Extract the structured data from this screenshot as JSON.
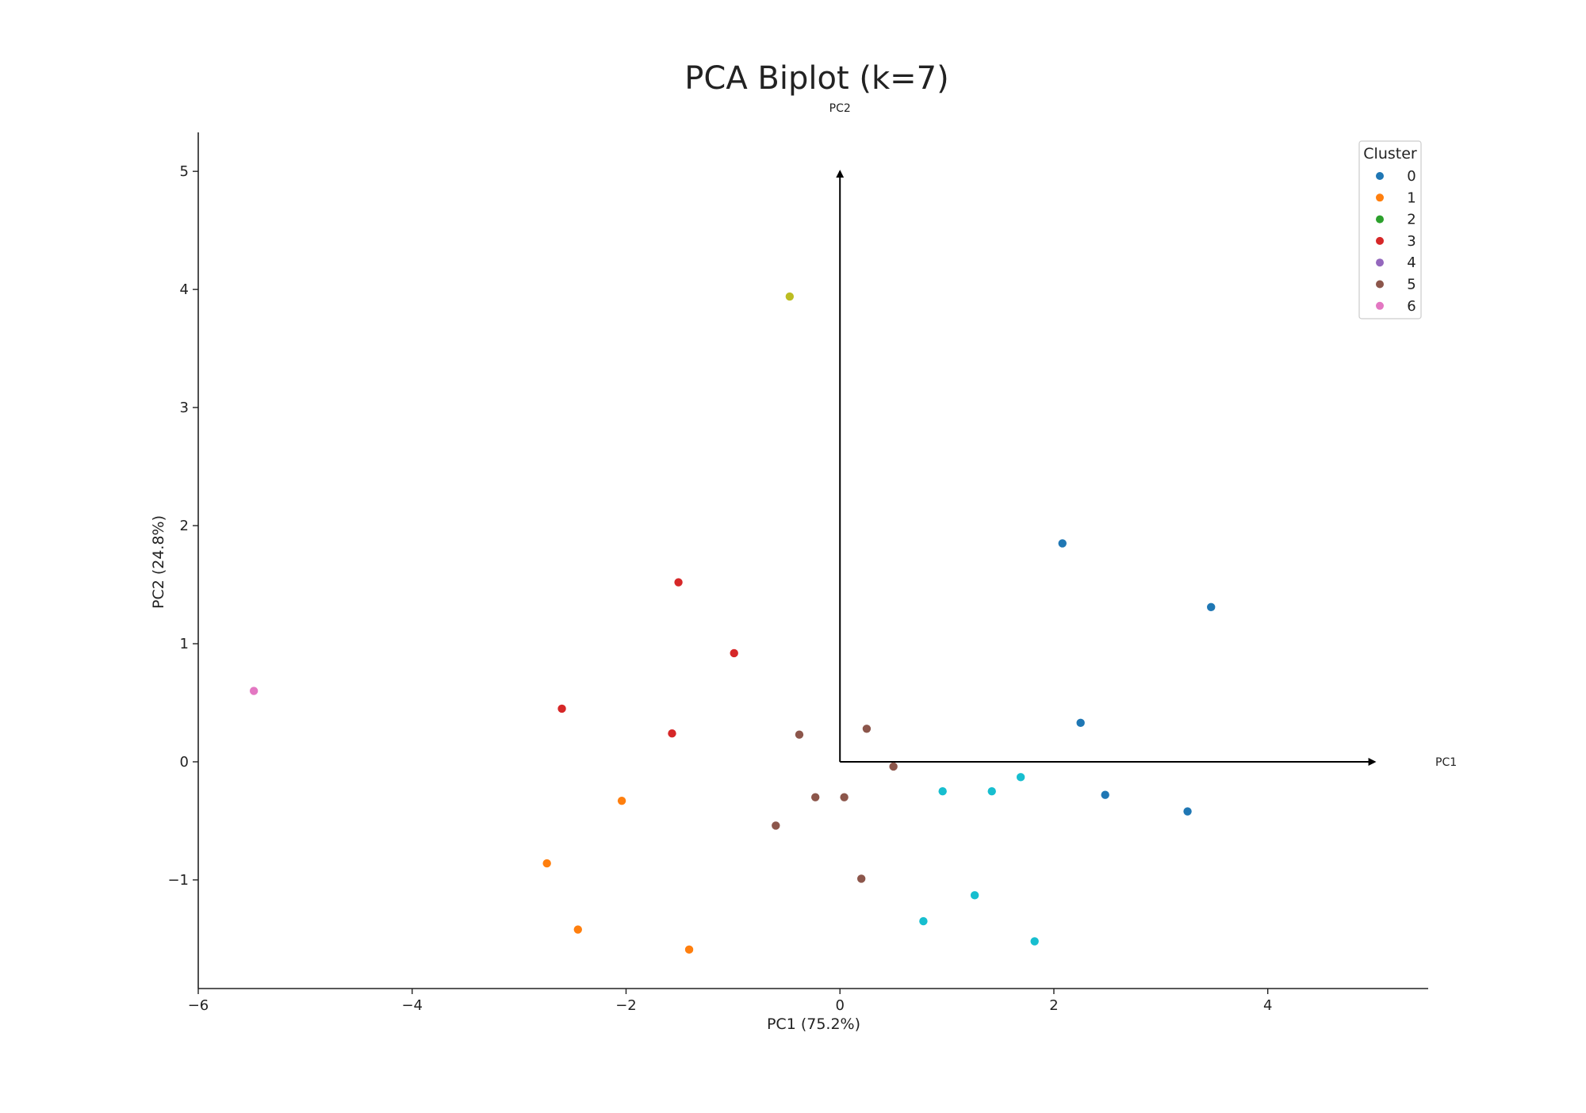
{
  "chart_data": {
    "type": "scatter",
    "title": "PCA Biplot (k=7)",
    "xlabel": "PC1 (75.2%)",
    "ylabel": "PC2 (24.8%)",
    "xlim": [
      -6,
      5.5
    ],
    "ylim": [
      -1.92,
      5.33
    ],
    "xticks": [
      -6,
      -4,
      -2,
      0,
      2,
      4
    ],
    "yticks": [
      -1,
      0,
      1,
      2,
      3,
      4,
      5
    ],
    "grid": false,
    "legend": {
      "title": "Cluster",
      "placement": "top-right",
      "entries": [
        {
          "label": "0",
          "color": "#1f77b4"
        },
        {
          "label": "1",
          "color": "#ff7f0e"
        },
        {
          "label": "2",
          "color": "#2ca02c"
        },
        {
          "label": "3",
          "color": "#d62728"
        },
        {
          "label": "4",
          "color": "#9467bd"
        },
        {
          "label": "5",
          "color": "#8c564b"
        },
        {
          "label": "6",
          "color": "#e377c2"
        }
      ]
    },
    "loadings": [
      {
        "label": "PC2",
        "x": 0,
        "y": 5
      },
      {
        "label": "PC1",
        "x": 5,
        "y": 0
      }
    ],
    "series": [
      {
        "color": "#1f77b4",
        "points": [
          {
            "x": 2.08,
            "y": 1.85
          },
          {
            "x": 3.47,
            "y": 1.31
          },
          {
            "x": 2.25,
            "y": 0.33
          },
          {
            "x": 2.48,
            "y": -0.28
          },
          {
            "x": 3.25,
            "y": -0.42
          }
        ]
      },
      {
        "color": "#ff7f0e",
        "points": [
          {
            "x": -2.04,
            "y": -0.33
          },
          {
            "x": -2.74,
            "y": -0.86
          },
          {
            "x": -2.45,
            "y": -1.42
          },
          {
            "x": -1.41,
            "y": -1.59
          }
        ]
      },
      {
        "color": "#d62728",
        "points": [
          {
            "x": -1.51,
            "y": 1.52
          },
          {
            "x": -0.99,
            "y": 0.92
          },
          {
            "x": -2.6,
            "y": 0.45
          },
          {
            "x": -1.57,
            "y": 0.24
          }
        ]
      },
      {
        "color": "#8c564b",
        "points": [
          {
            "x": -0.38,
            "y": 0.23
          },
          {
            "x": 0.25,
            "y": 0.28
          },
          {
            "x": 0.5,
            "y": -0.04
          },
          {
            "x": -0.23,
            "y": -0.3
          },
          {
            "x": 0.04,
            "y": -0.3
          },
          {
            "x": -0.6,
            "y": -0.54
          },
          {
            "x": 0.2,
            "y": -0.99
          }
        ]
      },
      {
        "color": "#e377c2",
        "points": [
          {
            "x": -5.48,
            "y": 0.6
          }
        ]
      },
      {
        "color": "#bcbd22",
        "points": [
          {
            "x": -0.47,
            "y": 3.94
          }
        ]
      },
      {
        "color": "#17becf",
        "points": [
          {
            "x": 0.96,
            "y": -0.25
          },
          {
            "x": 1.42,
            "y": -0.25
          },
          {
            "x": 1.69,
            "y": -0.13
          },
          {
            "x": 1.26,
            "y": -1.13
          },
          {
            "x": 0.78,
            "y": -1.35
          },
          {
            "x": 1.82,
            "y": -1.52
          }
        ]
      }
    ]
  }
}
